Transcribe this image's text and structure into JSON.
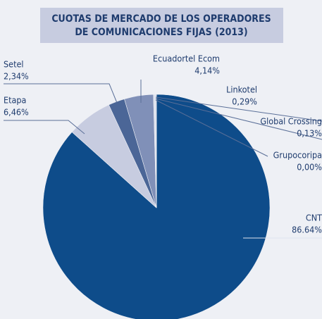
{
  "chart_data": {
    "type": "pie",
    "title": [
      "CUOTAS DE MERCADO DE LOS OPERADORES",
      "DE COMUNICACIONES FIJAS (2013)"
    ],
    "categories": [
      "CNT",
      "Etapa",
      "Setel",
      "Ecuadortel Ecom",
      "Linkotel",
      "Global Crossing",
      "Grupocoripa"
    ],
    "values": [
      86.64,
      6.46,
      2.34,
      4.14,
      0.29,
      0.13,
      0.0
    ],
    "value_labels": [
      "86.64%",
      "6,46%",
      "2,34%",
      "4,14%",
      "0,29%",
      "0,13%",
      "0,00%"
    ],
    "colors": [
      "#0e4c8a",
      "#c7cce0",
      "#4b6697",
      "#8090b8",
      "#dde2ee",
      "#b8c2dc",
      "#9aa8cc"
    ]
  }
}
